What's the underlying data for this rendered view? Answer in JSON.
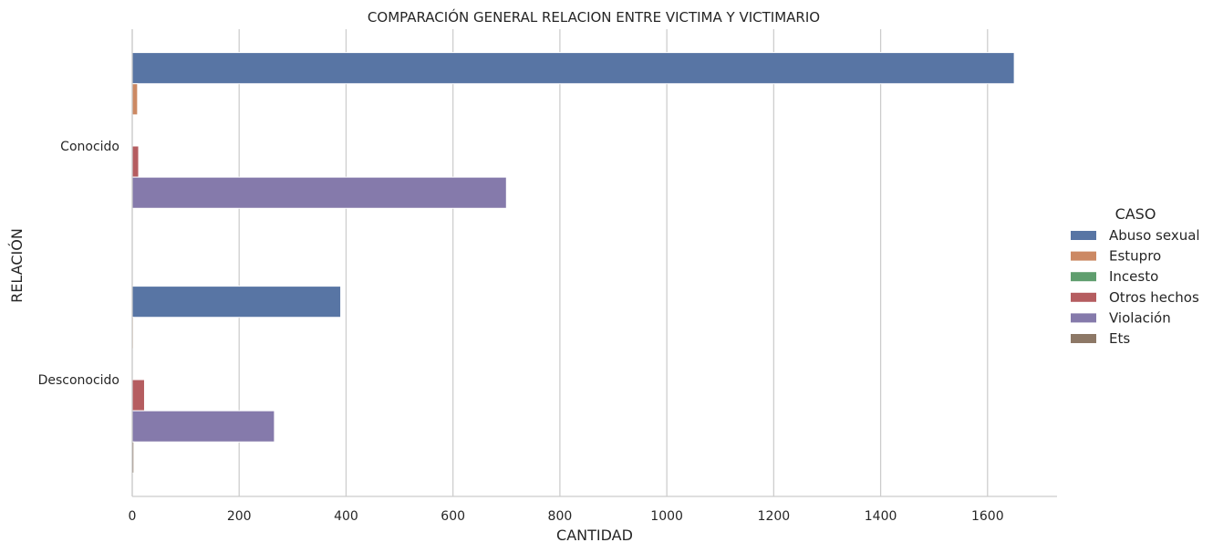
{
  "chart_data": {
    "type": "bar",
    "orientation": "horizontal",
    "title": "COMPARACIÓN GENERAL RELACION ENTRE VICTIMA Y VICTIMARIO",
    "xlabel": "CANTIDAD",
    "ylabel": "RELACIÓN",
    "xlim": [
      0,
      1730
    ],
    "xticks": [
      0,
      200,
      400,
      600,
      800,
      1000,
      1200,
      1400,
      1600
    ],
    "grid": "vertical",
    "categories": [
      "Conocido",
      "Desconocido"
    ],
    "legend": {
      "title": "CASO",
      "position": "right"
    },
    "series": [
      {
        "name": "Abuso sexual",
        "color": "#5875a4",
        "values": [
          1650,
          390
        ]
      },
      {
        "name": "Estupro",
        "color": "#cc8963",
        "values": [
          10,
          2
        ]
      },
      {
        "name": "Incesto",
        "color": "#5f9e6e",
        "values": [
          0,
          0
        ]
      },
      {
        "name": "Otros hechos",
        "color": "#b55d60",
        "values": [
          12,
          23
        ]
      },
      {
        "name": "Violación",
        "color": "#857aab",
        "values": [
          700,
          266
        ]
      },
      {
        "name": "Ets",
        "color": "#8d7866",
        "values": [
          0,
          3
        ]
      }
    ]
  }
}
